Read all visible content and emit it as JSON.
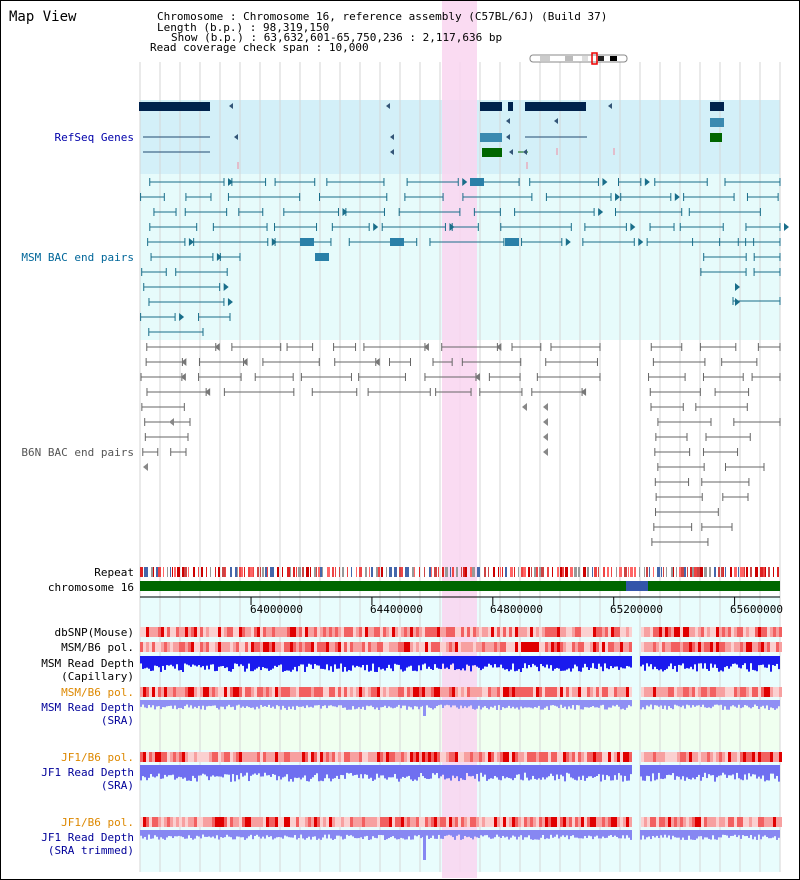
{
  "app_title": "Map View",
  "info": {
    "chromosome_label": "Chromosome",
    "chromosome_value": "Chromosome 16, reference assembly (C57BL/6J) (Build 37)",
    "length_label": "Length (b.p.)",
    "length_value": "98,319,150",
    "show_label": "Show (b.p.)",
    "show_value": "63,632,601-65,750,236 : 2,117,636 bp",
    "coverage_label": "Read coverage check span",
    "coverage_value": "10,000"
  },
  "tracks": {
    "refseq": "RefSeq Genes",
    "msm_bac": "MSM BAC end pairs",
    "b6n_bac": "B6N BAC end pairs",
    "repeat": "Repeat",
    "chromosome": "chromosome 16",
    "dbsnp": "dbSNP(Mouse)",
    "msm_b6_pol_1": "MSM/B6 pol.",
    "msm_read_depth_cap_1": "MSM Read Depth",
    "msm_read_depth_cap_2": "(Capillary)",
    "msm_b6_pol_2": "MSM/B6 pol.",
    "msm_read_depth_sra_1": "MSM Read Depth",
    "msm_read_depth_sra_2": "(SRA)",
    "jf1_b6_pol_1": "JF1/B6 pol.",
    "jf1_read_depth_sra_1": "JF1 Read Depth",
    "jf1_read_depth_sra_2": "(SRA)",
    "jf1_b6_pol_2": "JF1/B6 pol.",
    "jf1_read_depth_trim_1": "JF1 Read Depth",
    "jf1_read_depth_trim_2": "(SRA trimmed)"
  },
  "ruler": {
    "tick_labels": [
      "64000000",
      "64400000",
      "64800000",
      "65200000",
      "65600000"
    ],
    "tick_positions_bp": [
      64000000,
      64400000,
      64800000,
      65200000,
      65600000
    ],
    "range_start_bp": 63632601,
    "range_end_bp": 65750236
  },
  "colors": {
    "refseq_label": "#0000aa",
    "msm_label": "#006699",
    "b6n_label": "#555555",
    "msm_pol_label": "#dd8800",
    "msm_depth_label": "#000099",
    "jf1_pol_label": "#dd8800",
    "jf1_depth_label": "#000099",
    "highlight": "#f9d5f0",
    "chrom_band": "#006600"
  }
}
